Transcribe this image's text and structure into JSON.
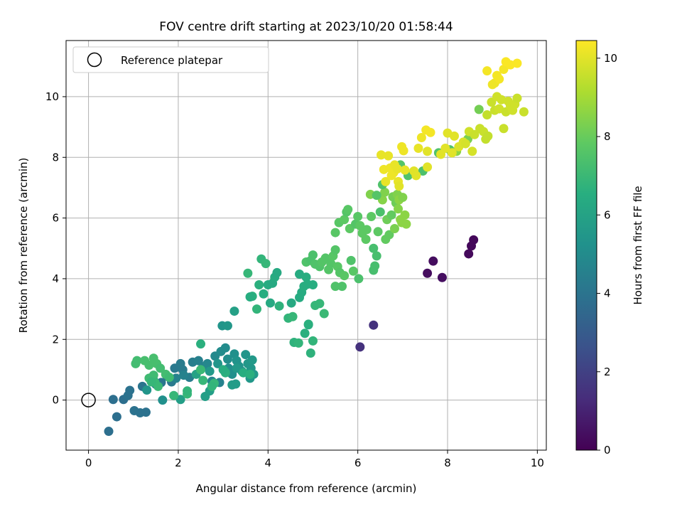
{
  "chart_data": {
    "type": "scatter",
    "title": "FOV centre drift starting at 2023/10/20 01:58:44",
    "xlabel": "Angular distance from reference (arcmin)",
    "ylabel": "Rotation from reference (arcmin)",
    "xlim": [
      -0.5,
      10.2
    ],
    "ylim": [
      -1.65,
      11.85
    ],
    "xticks": [
      0,
      2,
      4,
      6,
      8,
      10
    ],
    "yticks": [
      0,
      2,
      4,
      6,
      8,
      10
    ],
    "grid": true,
    "legend": {
      "placement": "top-left",
      "entries": [
        {
          "label": "Reference platepar",
          "marker": "open-circle"
        }
      ]
    },
    "reference_point": {
      "x": 0,
      "y": 0
    },
    "colorbar": {
      "label": "Hours from first FF file",
      "range": [
        0,
        10.45
      ],
      "ticks": [
        0,
        2,
        4,
        6,
        8,
        10
      ],
      "colormap": "viridis"
    },
    "colors": {
      "ref_marker": "#000000",
      "grid": "#b0b0b0"
    },
    "points": [
      {
        "x": 8.58,
        "y": 5.28,
        "c": 0.2
      },
      {
        "x": 8.53,
        "y": 5.08,
        "c": 0.2
      },
      {
        "x": 8.47,
        "y": 4.82,
        "c": 0.25
      },
      {
        "x": 7.68,
        "y": 4.58,
        "c": 0.35
      },
      {
        "x": 7.55,
        "y": 4.18,
        "c": 0.35
      },
      {
        "x": 7.88,
        "y": 4.04,
        "c": 0.4
      },
      {
        "x": 6.35,
        "y": 2.47,
        "c": 1.5
      },
      {
        "x": 6.05,
        "y": 1.75,
        "c": 1.5
      },
      {
        "x": 0.45,
        "y": -1.03,
        "c": 3.8
      },
      {
        "x": 0.63,
        "y": -0.55,
        "c": 3.8
      },
      {
        "x": 0.55,
        "y": 0.02,
        "c": 3.8
      },
      {
        "x": 0.78,
        "y": 0.02,
        "c": 3.8
      },
      {
        "x": 0.88,
        "y": 0.15,
        "c": 3.9
      },
      {
        "x": 0.92,
        "y": 0.32,
        "c": 3.9
      },
      {
        "x": 1.02,
        "y": -0.35,
        "c": 3.9
      },
      {
        "x": 1.15,
        "y": -0.42,
        "c": 3.9
      },
      {
        "x": 1.28,
        "y": -0.4,
        "c": 3.9
      },
      {
        "x": 1.2,
        "y": 0.45,
        "c": 4.0
      },
      {
        "x": 1.45,
        "y": 0.65,
        "c": 4.0
      },
      {
        "x": 1.5,
        "y": 0.52,
        "c": 4.1
      },
      {
        "x": 1.62,
        "y": 0.58,
        "c": 4.1
      },
      {
        "x": 1.75,
        "y": 0.78,
        "c": 4.1
      },
      {
        "x": 1.85,
        "y": 0.6,
        "c": 4.2
      },
      {
        "x": 1.92,
        "y": 1.05,
        "c": 4.2
      },
      {
        "x": 2.05,
        "y": 1.2,
        "c": 4.3
      },
      {
        "x": 2.1,
        "y": 1.0,
        "c": 4.3
      },
      {
        "x": 2.25,
        "y": 0.75,
        "c": 4.4
      },
      {
        "x": 2.32,
        "y": 1.25,
        "c": 4.4
      },
      {
        "x": 2.45,
        "y": 1.3,
        "c": 4.5
      },
      {
        "x": 2.55,
        "y": 1.1,
        "c": 4.5
      },
      {
        "x": 1.95,
        "y": 0.72,
        "c": 4.6
      },
      {
        "x": 2.12,
        "y": 0.82,
        "c": 4.6
      },
      {
        "x": 2.92,
        "y": 0.58,
        "c": 4.6
      },
      {
        "x": 2.75,
        "y": 0.62,
        "c": 4.7
      },
      {
        "x": 2.65,
        "y": 1.2,
        "c": 4.8
      },
      {
        "x": 2.82,
        "y": 1.45,
        "c": 4.9
      },
      {
        "x": 2.95,
        "y": 1.6,
        "c": 5.0
      },
      {
        "x": 3.05,
        "y": 1.72,
        "c": 5.0
      },
      {
        "x": 3.1,
        "y": 1.35,
        "c": 5.1
      },
      {
        "x": 3.12,
        "y": 1.05,
        "c": 5.1
      },
      {
        "x": 3.2,
        "y": 0.85,
        "c": 5.2
      },
      {
        "x": 3.25,
        "y": 1.52,
        "c": 5.2
      },
      {
        "x": 3.3,
        "y": 1.3,
        "c": 5.3
      },
      {
        "x": 3.35,
        "y": 1.12,
        "c": 5.3
      },
      {
        "x": 3.42,
        "y": 0.95,
        "c": 5.4
      },
      {
        "x": 3.5,
        "y": 1.5,
        "c": 5.4
      },
      {
        "x": 3.55,
        "y": 1.2,
        "c": 5.5
      },
      {
        "x": 3.6,
        "y": 0.72,
        "c": 5.5
      },
      {
        "x": 3.62,
        "y": 1.05,
        "c": 5.5
      },
      {
        "x": 3.65,
        "y": 1.32,
        "c": 5.6
      },
      {
        "x": 3.68,
        "y": 0.85,
        "c": 5.6
      },
      {
        "x": 3.3,
        "y": 1.05,
        "c": 5.6
      },
      {
        "x": 3.2,
        "y": 0.5,
        "c": 5.7
      },
      {
        "x": 3.28,
        "y": 0.53,
        "c": 5.7
      },
      {
        "x": 2.98,
        "y": 2.45,
        "c": 5.4
      },
      {
        "x": 3.1,
        "y": 2.45,
        "c": 5.5
      },
      {
        "x": 3.25,
        "y": 2.93,
        "c": 5.9
      },
      {
        "x": 3.05,
        "y": 0.95,
        "c": 5.6
      },
      {
        "x": 2.88,
        "y": 1.2,
        "c": 5.4
      },
      {
        "x": 2.7,
        "y": 0.95,
        "c": 5.6
      },
      {
        "x": 1.65,
        "y": 0.0,
        "c": 5.2
      },
      {
        "x": 1.3,
        "y": 0.33,
        "c": 5.4
      },
      {
        "x": 2.7,
        "y": 0.3,
        "c": 5.8
      },
      {
        "x": 2.4,
        "y": 0.85,
        "c": 6.0
      },
      {
        "x": 2.6,
        "y": 0.12,
        "c": 5.8
      },
      {
        "x": 2.05,
        "y": 0.02,
        "c": 5.8
      },
      {
        "x": 1.05,
        "y": 1.2,
        "c": 7.2
      },
      {
        "x": 1.08,
        "y": 1.3,
        "c": 7.2
      },
      {
        "x": 1.25,
        "y": 1.3,
        "c": 7.3
      },
      {
        "x": 1.35,
        "y": 1.15,
        "c": 7.3
      },
      {
        "x": 1.45,
        "y": 1.38,
        "c": 7.3
      },
      {
        "x": 1.52,
        "y": 1.2,
        "c": 7.3
      },
      {
        "x": 1.6,
        "y": 1.05,
        "c": 7.2
      },
      {
        "x": 1.72,
        "y": 0.85,
        "c": 7.2
      },
      {
        "x": 1.8,
        "y": 0.75,
        "c": 7.1
      },
      {
        "x": 1.35,
        "y": 0.72,
        "c": 7.1
      },
      {
        "x": 1.45,
        "y": 0.82,
        "c": 7.1
      },
      {
        "x": 1.48,
        "y": 0.58,
        "c": 7.0
      },
      {
        "x": 1.55,
        "y": 0.45,
        "c": 7.0
      },
      {
        "x": 1.4,
        "y": 0.6,
        "c": 6.9
      },
      {
        "x": 1.9,
        "y": 0.15,
        "c": 6.9
      },
      {
        "x": 2.2,
        "y": 0.2,
        "c": 6.9
      },
      {
        "x": 2.2,
        "y": 0.3,
        "c": 6.8
      },
      {
        "x": 2.55,
        "y": 0.65,
        "c": 6.9
      },
      {
        "x": 2.5,
        "y": 1.0,
        "c": 7.0
      },
      {
        "x": 2.8,
        "y": 0.55,
        "c": 6.9
      },
      {
        "x": 2.5,
        "y": 1.85,
        "c": 6.6
      },
      {
        "x": 2.75,
        "y": 0.45,
        "c": 6.8
      },
      {
        "x": 3.05,
        "y": 0.9,
        "c": 6.6
      },
      {
        "x": 3.0,
        "y": 1.0,
        "c": 6.5
      },
      {
        "x": 3.45,
        "y": 0.9,
        "c": 6.5
      },
      {
        "x": 3.6,
        "y": 0.85,
        "c": 6.6
      },
      {
        "x": 3.65,
        "y": 3.42,
        "c": 6.6
      },
      {
        "x": 3.75,
        "y": 3.0,
        "c": 6.8
      },
      {
        "x": 3.8,
        "y": 3.8,
        "c": 6.6
      },
      {
        "x": 3.85,
        "y": 4.65,
        "c": 6.8
      },
      {
        "x": 3.9,
        "y": 3.5,
        "c": 6.5
      },
      {
        "x": 3.95,
        "y": 4.5,
        "c": 6.9
      },
      {
        "x": 4.0,
        "y": 3.8,
        "c": 6.4
      },
      {
        "x": 4.05,
        "y": 3.2,
        "c": 6.3
      },
      {
        "x": 4.1,
        "y": 3.85,
        "c": 6.3
      },
      {
        "x": 4.15,
        "y": 4.05,
        "c": 6.4
      },
      {
        "x": 4.2,
        "y": 4.2,
        "c": 6.3
      },
      {
        "x": 3.55,
        "y": 4.18,
        "c": 6.9
      },
      {
        "x": 3.6,
        "y": 3.4,
        "c": 6.5
      },
      {
        "x": 4.25,
        "y": 3.1,
        "c": 6.7
      },
      {
        "x": 4.45,
        "y": 2.7,
        "c": 6.8
      },
      {
        "x": 4.52,
        "y": 3.2,
        "c": 6.3
      },
      {
        "x": 4.55,
        "y": 2.75,
        "c": 6.9
      },
      {
        "x": 4.58,
        "y": 1.9,
        "c": 6.7
      },
      {
        "x": 4.68,
        "y": 1.88,
        "c": 6.8
      },
      {
        "x": 4.7,
        "y": 3.38,
        "c": 6.4
      },
      {
        "x": 4.75,
        "y": 3.55,
        "c": 6.4
      },
      {
        "x": 4.8,
        "y": 3.75,
        "c": 6.5
      },
      {
        "x": 4.82,
        "y": 2.2,
        "c": 6.6
      },
      {
        "x": 4.9,
        "y": 2.48,
        "c": 6.4
      },
      {
        "x": 4.95,
        "y": 1.55,
        "c": 6.7
      },
      {
        "x": 5.0,
        "y": 1.95,
        "c": 6.8
      },
      {
        "x": 4.88,
        "y": 3.82,
        "c": 6.5
      },
      {
        "x": 5.0,
        "y": 3.8,
        "c": 6.5
      },
      {
        "x": 5.05,
        "y": 3.12,
        "c": 6.9
      },
      {
        "x": 5.15,
        "y": 3.18,
        "c": 6.9
      },
      {
        "x": 5.25,
        "y": 2.85,
        "c": 7.0
      },
      {
        "x": 4.7,
        "y": 4.15,
        "c": 6.4
      },
      {
        "x": 4.85,
        "y": 4.05,
        "c": 6.5
      },
      {
        "x": 4.9,
        "y": 2.5,
        "c": 6.6
      },
      {
        "x": 4.85,
        "y": 4.55,
        "c": 7.5
      },
      {
        "x": 4.95,
        "y": 4.6,
        "c": 7.4
      },
      {
        "x": 5.0,
        "y": 4.78,
        "c": 7.4
      },
      {
        "x": 5.05,
        "y": 4.48,
        "c": 7.5
      },
      {
        "x": 5.15,
        "y": 4.4,
        "c": 7.5
      },
      {
        "x": 5.2,
        "y": 4.55,
        "c": 7.6
      },
      {
        "x": 5.28,
        "y": 4.68,
        "c": 7.6
      },
      {
        "x": 5.35,
        "y": 4.3,
        "c": 7.6
      },
      {
        "x": 5.4,
        "y": 4.5,
        "c": 7.6
      },
      {
        "x": 5.45,
        "y": 4.75,
        "c": 7.7
      },
      {
        "x": 5.5,
        "y": 4.95,
        "c": 7.6
      },
      {
        "x": 5.55,
        "y": 4.4,
        "c": 7.7
      },
      {
        "x": 5.6,
        "y": 4.2,
        "c": 7.6
      },
      {
        "x": 5.65,
        "y": 3.75,
        "c": 7.5
      },
      {
        "x": 5.7,
        "y": 4.1,
        "c": 7.7
      },
      {
        "x": 5.5,
        "y": 3.75,
        "c": 7.5
      },
      {
        "x": 5.5,
        "y": 5.52,
        "c": 7.7
      },
      {
        "x": 5.58,
        "y": 5.85,
        "c": 7.7
      },
      {
        "x": 5.7,
        "y": 5.95,
        "c": 7.8
      },
      {
        "x": 5.75,
        "y": 6.2,
        "c": 7.6
      },
      {
        "x": 5.78,
        "y": 6.28,
        "c": 7.7
      },
      {
        "x": 5.82,
        "y": 5.65,
        "c": 7.8
      },
      {
        "x": 5.85,
        "y": 4.6,
        "c": 7.5
      },
      {
        "x": 5.9,
        "y": 4.25,
        "c": 7.7
      },
      {
        "x": 5.95,
        "y": 5.8,
        "c": 7.6
      },
      {
        "x": 6.0,
        "y": 6.05,
        "c": 7.7
      },
      {
        "x": 6.02,
        "y": 4.0,
        "c": 7.4
      },
      {
        "x": 6.05,
        "y": 5.75,
        "c": 7.8
      },
      {
        "x": 6.1,
        "y": 5.5,
        "c": 7.8
      },
      {
        "x": 6.12,
        "y": 5.6,
        "c": 7.8
      },
      {
        "x": 6.18,
        "y": 5.3,
        "c": 7.8
      },
      {
        "x": 6.2,
        "y": 5.62,
        "c": 7.8
      },
      {
        "x": 6.28,
        "y": 6.78,
        "c": 8.4
      },
      {
        "x": 6.3,
        "y": 6.05,
        "c": 7.8
      },
      {
        "x": 6.35,
        "y": 4.28,
        "c": 7.3
      },
      {
        "x": 6.38,
        "y": 4.42,
        "c": 7.3
      },
      {
        "x": 6.42,
        "y": 4.75,
        "c": 7.3
      },
      {
        "x": 6.35,
        "y": 5.0,
        "c": 7.3
      },
      {
        "x": 6.45,
        "y": 5.55,
        "c": 7.8
      },
      {
        "x": 6.5,
        "y": 6.2,
        "c": 7.4
      },
      {
        "x": 6.55,
        "y": 6.6,
        "c": 8.5
      },
      {
        "x": 6.6,
        "y": 6.85,
        "c": 8.4
      },
      {
        "x": 6.62,
        "y": 5.3,
        "c": 7.9
      },
      {
        "x": 6.65,
        "y": 5.95,
        "c": 8.1
      },
      {
        "x": 6.7,
        "y": 5.45,
        "c": 7.9
      },
      {
        "x": 6.75,
        "y": 6.1,
        "c": 7.9
      },
      {
        "x": 6.78,
        "y": 6.7,
        "c": 8.2
      },
      {
        "x": 6.82,
        "y": 5.65,
        "c": 8.3
      },
      {
        "x": 6.85,
        "y": 6.5,
        "c": 8.1
      },
      {
        "x": 6.88,
        "y": 6.78,
        "c": 8.4
      },
      {
        "x": 6.9,
        "y": 6.3,
        "c": 8.5
      },
      {
        "x": 6.92,
        "y": 6.6,
        "c": 8.6
      },
      {
        "x": 6.95,
        "y": 5.95,
        "c": 8.6
      },
      {
        "x": 6.98,
        "y": 5.85,
        "c": 8.6
      },
      {
        "x": 7.0,
        "y": 6.68,
        "c": 8.4
      },
      {
        "x": 7.05,
        "y": 6.1,
        "c": 8.6
      },
      {
        "x": 7.08,
        "y": 5.8,
        "c": 8.6
      },
      {
        "x": 6.42,
        "y": 6.75,
        "c": 7.6
      },
      {
        "x": 6.55,
        "y": 7.1,
        "c": 7.5
      },
      {
        "x": 6.95,
        "y": 7.75,
        "c": 7.6
      },
      {
        "x": 7.12,
        "y": 7.4,
        "c": 7.5
      },
      {
        "x": 7.45,
        "y": 7.55,
        "c": 7.4
      },
      {
        "x": 7.8,
        "y": 8.15,
        "c": 7.5
      },
      {
        "x": 8.05,
        "y": 8.25,
        "c": 7.5
      },
      {
        "x": 8.7,
        "y": 9.58,
        "c": 8.2
      },
      {
        "x": 8.2,
        "y": 8.2,
        "c": 8.6
      },
      {
        "x": 8.45,
        "y": 8.6,
        "c": 8.3
      },
      {
        "x": 6.52,
        "y": 8.08,
        "c": 10.1
      },
      {
        "x": 6.58,
        "y": 7.6,
        "c": 10.2
      },
      {
        "x": 6.62,
        "y": 7.2,
        "c": 10.1
      },
      {
        "x": 6.68,
        "y": 8.05,
        "c": 10.1
      },
      {
        "x": 6.72,
        "y": 7.65,
        "c": 10.2
      },
      {
        "x": 6.75,
        "y": 7.4,
        "c": 10.2
      },
      {
        "x": 6.8,
        "y": 7.5,
        "c": 10.2
      },
      {
        "x": 6.82,
        "y": 7.75,
        "c": 10.1
      },
      {
        "x": 6.88,
        "y": 7.62,
        "c": 10.1
      },
      {
        "x": 6.9,
        "y": 7.2,
        "c": 10.1
      },
      {
        "x": 6.92,
        "y": 7.05,
        "c": 10.0
      },
      {
        "x": 6.98,
        "y": 8.35,
        "c": 10.2
      },
      {
        "x": 7.02,
        "y": 8.22,
        "c": 10.2
      },
      {
        "x": 7.05,
        "y": 7.58,
        "c": 10.1
      },
      {
        "x": 7.25,
        "y": 7.55,
        "c": 10.0
      },
      {
        "x": 7.3,
        "y": 7.4,
        "c": 10.0
      },
      {
        "x": 7.35,
        "y": 8.3,
        "c": 10.1
      },
      {
        "x": 7.42,
        "y": 8.65,
        "c": 10.2
      },
      {
        "x": 7.52,
        "y": 8.9,
        "c": 10.3
      },
      {
        "x": 7.62,
        "y": 8.82,
        "c": 10.3
      },
      {
        "x": 7.55,
        "y": 8.2,
        "c": 10.0
      },
      {
        "x": 7.55,
        "y": 7.68,
        "c": 10.0
      },
      {
        "x": 7.85,
        "y": 8.1,
        "c": 10.0
      },
      {
        "x": 7.95,
        "y": 8.3,
        "c": 10.0
      },
      {
        "x": 8.0,
        "y": 8.8,
        "c": 10.0
      },
      {
        "x": 8.1,
        "y": 8.15,
        "c": 10.0
      },
      {
        "x": 8.15,
        "y": 8.7,
        "c": 10.0
      },
      {
        "x": 8.25,
        "y": 8.35,
        "c": 9.9
      },
      {
        "x": 8.35,
        "y": 8.5,
        "c": 9.9
      },
      {
        "x": 8.4,
        "y": 8.45,
        "c": 9.8
      },
      {
        "x": 8.48,
        "y": 8.85,
        "c": 9.7
      },
      {
        "x": 8.55,
        "y": 8.2,
        "c": 9.8
      },
      {
        "x": 8.6,
        "y": 8.75,
        "c": 9.6
      },
      {
        "x": 8.72,
        "y": 8.95,
        "c": 9.6
      },
      {
        "x": 8.8,
        "y": 8.85,
        "c": 9.6
      },
      {
        "x": 8.85,
        "y": 8.6,
        "c": 9.5
      },
      {
        "x": 8.9,
        "y": 8.7,
        "c": 9.5
      },
      {
        "x": 8.88,
        "y": 9.4,
        "c": 9.5
      },
      {
        "x": 8.98,
        "y": 9.82,
        "c": 9.6
      },
      {
        "x": 9.05,
        "y": 9.55,
        "c": 9.6
      },
      {
        "x": 9.1,
        "y": 10.0,
        "c": 9.7
      },
      {
        "x": 9.15,
        "y": 9.6,
        "c": 9.7
      },
      {
        "x": 9.2,
        "y": 9.9,
        "c": 9.7
      },
      {
        "x": 9.25,
        "y": 8.95,
        "c": 9.6
      },
      {
        "x": 9.3,
        "y": 9.5,
        "c": 9.6
      },
      {
        "x": 9.35,
        "y": 9.85,
        "c": 9.7
      },
      {
        "x": 9.4,
        "y": 9.7,
        "c": 9.7
      },
      {
        "x": 9.45,
        "y": 9.55,
        "c": 9.7
      },
      {
        "x": 9.5,
        "y": 9.75,
        "c": 9.7
      },
      {
        "x": 9.55,
        "y": 9.95,
        "c": 9.6
      },
      {
        "x": 9.7,
        "y": 9.5,
        "c": 9.6
      },
      {
        "x": 9.05,
        "y": 10.45,
        "c": 10.2
      },
      {
        "x": 9.1,
        "y": 10.7,
        "c": 10.3
      },
      {
        "x": 9.15,
        "y": 10.58,
        "c": 10.3
      },
      {
        "x": 9.25,
        "y": 10.9,
        "c": 10.3
      },
      {
        "x": 9.3,
        "y": 11.15,
        "c": 10.4
      },
      {
        "x": 9.4,
        "y": 11.05,
        "c": 10.4
      },
      {
        "x": 9.55,
        "y": 11.1,
        "c": 10.4
      },
      {
        "x": 8.88,
        "y": 10.85,
        "c": 10.3
      },
      {
        "x": 9.0,
        "y": 10.4,
        "c": 10.2
      }
    ]
  }
}
